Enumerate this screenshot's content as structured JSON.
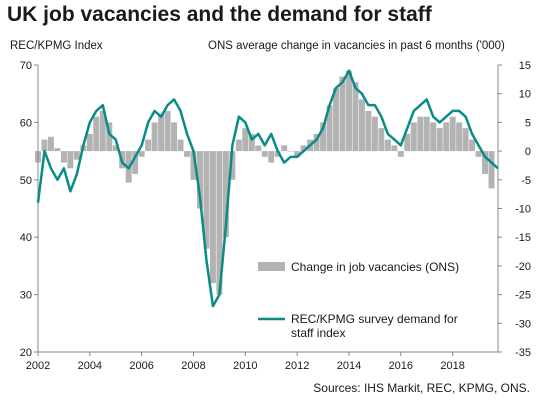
{
  "title": "UK job vacancies and the demand for staff",
  "left_axis_title": "REC/KPMG  Index",
  "right_axis_title": "ONS average change in vacancies in past 6 months ('000)",
  "source": "Sources: IHS Markit, REC, KPMG, ONS.",
  "colors": {
    "bars": "#b3b3b3",
    "line": "#0a8c86",
    "axis": "#888888"
  },
  "chart_data": {
    "type": "line",
    "x_ticks": [
      "2002",
      "2004",
      "2006",
      "2008",
      "2010",
      "2012",
      "2014",
      "2016",
      "2018"
    ],
    "x_range": [
      2002,
      2019.75
    ],
    "left_axis": {
      "min": 20,
      "max": 70,
      "ticks": [
        "20",
        "30",
        "40",
        "50",
        "60",
        "70"
      ]
    },
    "right_axis": {
      "min": -35,
      "max": 15,
      "ticks": [
        "-35",
        "-30",
        "-25",
        "-20",
        "-15",
        "-10",
        "-5",
        "0",
        "5",
        "10",
        "15"
      ]
    },
    "legend": [
      "Change in job vacancies (ONS)",
      "REC/KPMG survey demand for staff index"
    ],
    "series": [
      {
        "name": "Change in job vacancies (ONS)",
        "type": "bar",
        "axis": "right",
        "x": [
          2002.0,
          2002.25,
          2002.5,
          2002.75,
          2003.0,
          2003.25,
          2003.5,
          2003.75,
          2004.0,
          2004.25,
          2004.5,
          2004.75,
          2005.0,
          2005.25,
          2005.5,
          2005.75,
          2006.0,
          2006.25,
          2006.5,
          2006.75,
          2007.0,
          2007.25,
          2007.5,
          2007.75,
          2008.0,
          2008.25,
          2008.5,
          2008.75,
          2009.0,
          2009.25,
          2009.5,
          2009.75,
          2010.0,
          2010.25,
          2010.5,
          2010.75,
          2011.0,
          2011.25,
          2011.5,
          2011.75,
          2012.0,
          2012.25,
          2012.5,
          2012.75,
          2013.0,
          2013.25,
          2013.5,
          2013.75,
          2014.0,
          2014.25,
          2014.5,
          2014.75,
          2015.0,
          2015.25,
          2015.5,
          2015.75,
          2016.0,
          2016.25,
          2016.5,
          2016.75,
          2017.0,
          2017.25,
          2017.5,
          2017.75,
          2018.0,
          2018.25,
          2018.5,
          2018.75,
          2019.0,
          2019.25,
          2019.5
        ],
        "values": [
          -2,
          2,
          2.5,
          0.5,
          -2,
          -3,
          -1.5,
          1,
          3,
          6,
          7,
          5,
          1,
          -3,
          -5.5,
          -4,
          -1,
          2,
          5,
          6.5,
          7,
          5,
          2,
          -1,
          -5,
          -10,
          -17,
          -23,
          -25,
          -15,
          -5,
          2,
          4,
          3,
          1,
          -1,
          -2,
          -1,
          1,
          0,
          -1,
          1,
          2,
          3,
          5,
          8,
          11,
          13,
          14,
          12,
          9,
          7,
          6,
          4,
          2,
          1,
          -1,
          3,
          5,
          6,
          6,
          5,
          4,
          5,
          6,
          5,
          4,
          2,
          -1,
          -4,
          -6.5
        ]
      },
      {
        "name": "REC/KPMG survey demand for staff index",
        "type": "line",
        "axis": "left",
        "x": [
          2002.0,
          2002.25,
          2002.5,
          2002.75,
          2003.0,
          2003.25,
          2003.5,
          2003.75,
          2004.0,
          2004.25,
          2004.5,
          2004.75,
          2005.0,
          2005.25,
          2005.5,
          2005.75,
          2006.0,
          2006.25,
          2006.5,
          2006.75,
          2007.0,
          2007.25,
          2007.5,
          2007.75,
          2008.0,
          2008.25,
          2008.5,
          2008.75,
          2009.0,
          2009.25,
          2009.5,
          2009.75,
          2010.0,
          2010.25,
          2010.5,
          2010.75,
          2011.0,
          2011.25,
          2011.5,
          2011.75,
          2012.0,
          2012.25,
          2012.5,
          2012.75,
          2013.0,
          2013.25,
          2013.5,
          2013.75,
          2014.0,
          2014.25,
          2014.5,
          2014.75,
          2015.0,
          2015.25,
          2015.5,
          2015.75,
          2016.0,
          2016.25,
          2016.5,
          2016.75,
          2017.0,
          2017.25,
          2017.5,
          2017.75,
          2018.0,
          2018.25,
          2018.5,
          2018.75,
          2019.0,
          2019.25,
          2019.5,
          2019.75
        ],
        "values": [
          46,
          55,
          52,
          50,
          52,
          48,
          51,
          56,
          60,
          62,
          63,
          58,
          57,
          53,
          52,
          54,
          56,
          60,
          62,
          61,
          63,
          64,
          62,
          58,
          55,
          47,
          36,
          28,
          30,
          42,
          56,
          61,
          60,
          57,
          58,
          56,
          58,
          55,
          53,
          54,
          54,
          55,
          56,
          57,
          59,
          63,
          66,
          67,
          69,
          66,
          65,
          63,
          63,
          61,
          58,
          57,
          56,
          59,
          62,
          63,
          64,
          61,
          60,
          61,
          62,
          62,
          61,
          58,
          56,
          54,
          53,
          52
        ]
      }
    ]
  }
}
